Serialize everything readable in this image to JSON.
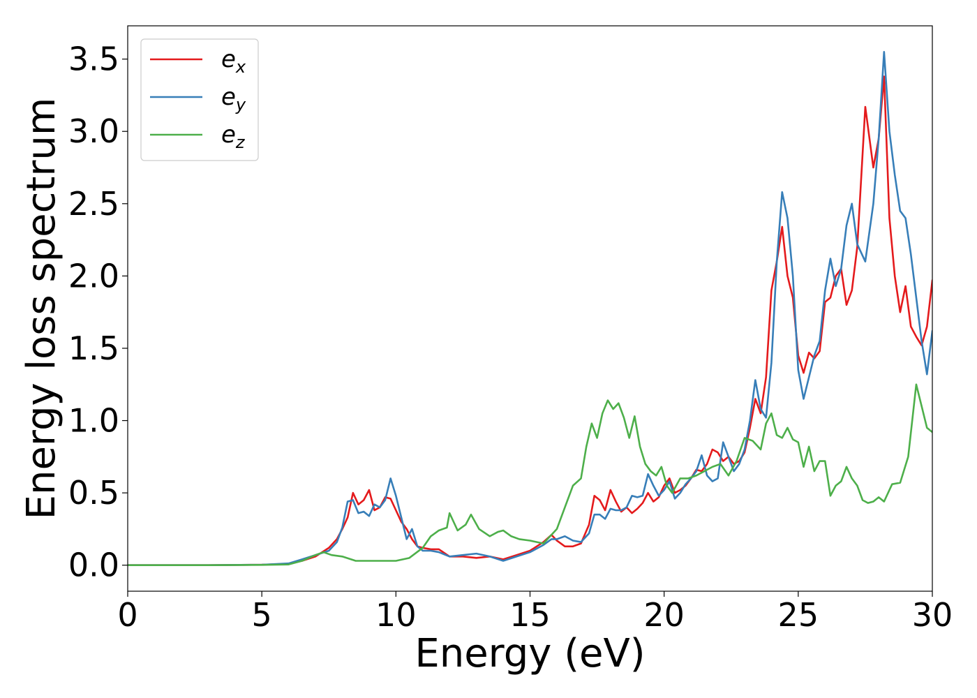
{
  "chart_data": {
    "type": "line",
    "xlabel": "Energy (eV)",
    "ylabel": "Energy loss spectrum",
    "xlim": [
      0,
      30
    ],
    "ylim": [
      -0.18,
      3.73
    ],
    "xticks": [
      0,
      5,
      10,
      15,
      20,
      25,
      30
    ],
    "xtick_labels": [
      "0",
      "5",
      "10",
      "15",
      "20",
      "25",
      "30"
    ],
    "yticks": [
      0.0,
      0.5,
      1.0,
      1.5,
      2.0,
      2.5,
      3.0,
      3.5
    ],
    "ytick_labels": [
      "0.0",
      "0.5",
      "1.0",
      "1.5",
      "2.0",
      "2.5",
      "3.0",
      "3.5"
    ],
    "grid": false,
    "legend_position": "top-left",
    "series": [
      {
        "name": "e_x",
        "label_base": "e",
        "label_sub": "x",
        "color": "#e41a1c",
        "x": [
          0,
          3,
          5,
          6,
          6.5,
          7,
          7.5,
          7.8,
          8.0,
          8.2,
          8.4,
          8.6,
          8.8,
          9.0,
          9.2,
          9.4,
          9.6,
          9.8,
          10.0,
          10.2,
          10.4,
          10.6,
          10.8,
          11.0,
          11.3,
          11.6,
          12.0,
          12.5,
          13.0,
          13.5,
          14.0,
          14.5,
          15.0,
          15.5,
          15.8,
          16.0,
          16.3,
          16.6,
          16.9,
          17.2,
          17.4,
          17.6,
          17.8,
          18.0,
          18.2,
          18.4,
          18.6,
          18.8,
          19.0,
          19.2,
          19.4,
          19.6,
          19.8,
          20.0,
          20.2,
          20.4,
          20.6,
          20.8,
          21.0,
          21.2,
          21.4,
          21.6,
          21.8,
          22.0,
          22.2,
          22.4,
          22.6,
          22.8,
          23.0,
          23.2,
          23.4,
          23.6,
          23.8,
          24.0,
          24.2,
          24.4,
          24.6,
          24.8,
          25.0,
          25.2,
          25.4,
          25.6,
          25.8,
          26.0,
          26.2,
          26.4,
          26.6,
          26.8,
          27.0,
          27.2,
          27.5,
          27.8,
          28.0,
          28.2,
          28.4,
          28.6,
          28.8,
          29.0,
          29.2,
          29.4,
          29.6,
          29.8,
          30.0
        ],
        "y": [
          0.0,
          0.0,
          0.003,
          0.01,
          0.03,
          0.06,
          0.12,
          0.18,
          0.25,
          0.33,
          0.5,
          0.42,
          0.45,
          0.52,
          0.38,
          0.4,
          0.47,
          0.46,
          0.38,
          0.3,
          0.25,
          0.18,
          0.13,
          0.12,
          0.11,
          0.11,
          0.06,
          0.06,
          0.05,
          0.06,
          0.04,
          0.07,
          0.1,
          0.16,
          0.21,
          0.17,
          0.13,
          0.13,
          0.15,
          0.28,
          0.48,
          0.45,
          0.38,
          0.52,
          0.44,
          0.37,
          0.4,
          0.36,
          0.39,
          0.43,
          0.5,
          0.44,
          0.47,
          0.55,
          0.6,
          0.5,
          0.52,
          0.55,
          0.6,
          0.66,
          0.65,
          0.7,
          0.8,
          0.78,
          0.72,
          0.75,
          0.7,
          0.72,
          0.78,
          0.95,
          1.15,
          1.05,
          1.3,
          1.9,
          2.1,
          2.34,
          2.0,
          1.85,
          1.45,
          1.33,
          1.47,
          1.43,
          1.48,
          1.82,
          1.85,
          2.0,
          2.05,
          1.8,
          1.9,
          2.2,
          3.17,
          2.75,
          2.95,
          3.38,
          2.4,
          2.0,
          1.75,
          1.93,
          1.65,
          1.58,
          1.52,
          1.65,
          1.97
        ]
      },
      {
        "name": "e_y",
        "label_base": "e",
        "label_sub": "y",
        "color": "#377eb8",
        "x": [
          0,
          3,
          5,
          6,
          6.5,
          7,
          7.5,
          7.8,
          8.0,
          8.2,
          8.4,
          8.6,
          8.8,
          9.0,
          9.2,
          9.4,
          9.6,
          9.8,
          10.0,
          10.2,
          10.4,
          10.6,
          10.8,
          11.0,
          11.3,
          11.6,
          12.0,
          12.5,
          13.0,
          13.5,
          14.0,
          14.5,
          15.0,
          15.5,
          15.8,
          16.0,
          16.3,
          16.6,
          16.9,
          17.2,
          17.4,
          17.6,
          17.8,
          18.0,
          18.2,
          18.4,
          18.6,
          18.8,
          19.0,
          19.2,
          19.4,
          19.6,
          19.8,
          20.0,
          20.2,
          20.4,
          20.6,
          20.8,
          21.0,
          21.2,
          21.4,
          21.6,
          21.8,
          22.0,
          22.2,
          22.4,
          22.6,
          22.8,
          23.0,
          23.2,
          23.4,
          23.6,
          23.8,
          24.0,
          24.2,
          24.4,
          24.6,
          24.8,
          25.0,
          25.2,
          25.4,
          25.6,
          25.8,
          26.0,
          26.2,
          26.4,
          26.6,
          26.8,
          27.0,
          27.2,
          27.5,
          27.8,
          28.0,
          28.2,
          28.4,
          28.6,
          28.8,
          29.0,
          29.2,
          29.4,
          29.6,
          29.8,
          30.0
        ],
        "y": [
          0.0,
          0.0,
          0.003,
          0.012,
          0.04,
          0.07,
          0.1,
          0.16,
          0.26,
          0.44,
          0.45,
          0.36,
          0.37,
          0.34,
          0.42,
          0.4,
          0.45,
          0.6,
          0.48,
          0.33,
          0.18,
          0.25,
          0.13,
          0.1,
          0.1,
          0.09,
          0.06,
          0.07,
          0.08,
          0.06,
          0.03,
          0.06,
          0.09,
          0.14,
          0.18,
          0.18,
          0.2,
          0.17,
          0.16,
          0.22,
          0.35,
          0.35,
          0.32,
          0.39,
          0.38,
          0.38,
          0.4,
          0.48,
          0.47,
          0.48,
          0.63,
          0.55,
          0.48,
          0.52,
          0.58,
          0.46,
          0.5,
          0.56,
          0.6,
          0.65,
          0.76,
          0.62,
          0.58,
          0.6,
          0.85,
          0.75,
          0.65,
          0.7,
          0.8,
          1.0,
          1.28,
          1.08,
          1.02,
          1.4,
          2.1,
          2.58,
          2.4,
          2.0,
          1.35,
          1.15,
          1.3,
          1.45,
          1.55,
          1.9,
          2.12,
          1.93,
          2.05,
          2.35,
          2.5,
          2.22,
          2.1,
          2.5,
          2.95,
          3.55,
          3.0,
          2.7,
          2.45,
          2.4,
          2.15,
          1.85,
          1.55,
          1.32,
          1.62
        ]
      },
      {
        "name": "e_z",
        "label_base": "e",
        "label_sub": "z",
        "color": "#4daf4a",
        "x": [
          0,
          3,
          5,
          6,
          6.5,
          7,
          7.3,
          7.6,
          8.0,
          8.5,
          9.0,
          9.5,
          10.0,
          10.5,
          11.0,
          11.3,
          11.6,
          11.9,
          12.0,
          12.3,
          12.6,
          12.8,
          13.1,
          13.5,
          13.8,
          14.0,
          14.3,
          14.6,
          15.0,
          15.5,
          16.0,
          16.3,
          16.6,
          16.9,
          17.1,
          17.3,
          17.5,
          17.7,
          17.9,
          18.1,
          18.3,
          18.5,
          18.7,
          18.9,
          19.1,
          19.3,
          19.5,
          19.7,
          19.9,
          20.1,
          20.3,
          20.6,
          20.9,
          21.2,
          21.5,
          21.8,
          22.1,
          22.4,
          22.7,
          23.0,
          23.3,
          23.6,
          23.8,
          24.0,
          24.2,
          24.4,
          24.6,
          24.8,
          25.0,
          25.2,
          25.4,
          25.6,
          25.8,
          26.0,
          26.2,
          26.4,
          26.6,
          26.8,
          27.0,
          27.2,
          27.4,
          27.6,
          27.8,
          28.0,
          28.2,
          28.5,
          28.8,
          29.1,
          29.4,
          29.6,
          29.8,
          30.0
        ],
        "y": [
          0.0,
          0.0,
          0.002,
          0.005,
          0.03,
          0.07,
          0.09,
          0.07,
          0.06,
          0.03,
          0.03,
          0.03,
          0.03,
          0.05,
          0.12,
          0.2,
          0.24,
          0.26,
          0.36,
          0.24,
          0.28,
          0.35,
          0.25,
          0.2,
          0.23,
          0.24,
          0.2,
          0.18,
          0.17,
          0.15,
          0.25,
          0.4,
          0.55,
          0.6,
          0.82,
          0.98,
          0.88,
          1.05,
          1.14,
          1.08,
          1.12,
          1.02,
          0.88,
          1.03,
          0.82,
          0.7,
          0.65,
          0.62,
          0.68,
          0.55,
          0.5,
          0.6,
          0.6,
          0.62,
          0.65,
          0.68,
          0.7,
          0.62,
          0.72,
          0.88,
          0.86,
          0.8,
          0.98,
          1.05,
          0.9,
          0.88,
          0.95,
          0.87,
          0.85,
          0.68,
          0.82,
          0.65,
          0.72,
          0.72,
          0.48,
          0.55,
          0.58,
          0.68,
          0.6,
          0.55,
          0.45,
          0.43,
          0.44,
          0.47,
          0.44,
          0.56,
          0.57,
          0.75,
          1.25,
          1.1,
          0.95,
          0.92
        ]
      }
    ]
  }
}
